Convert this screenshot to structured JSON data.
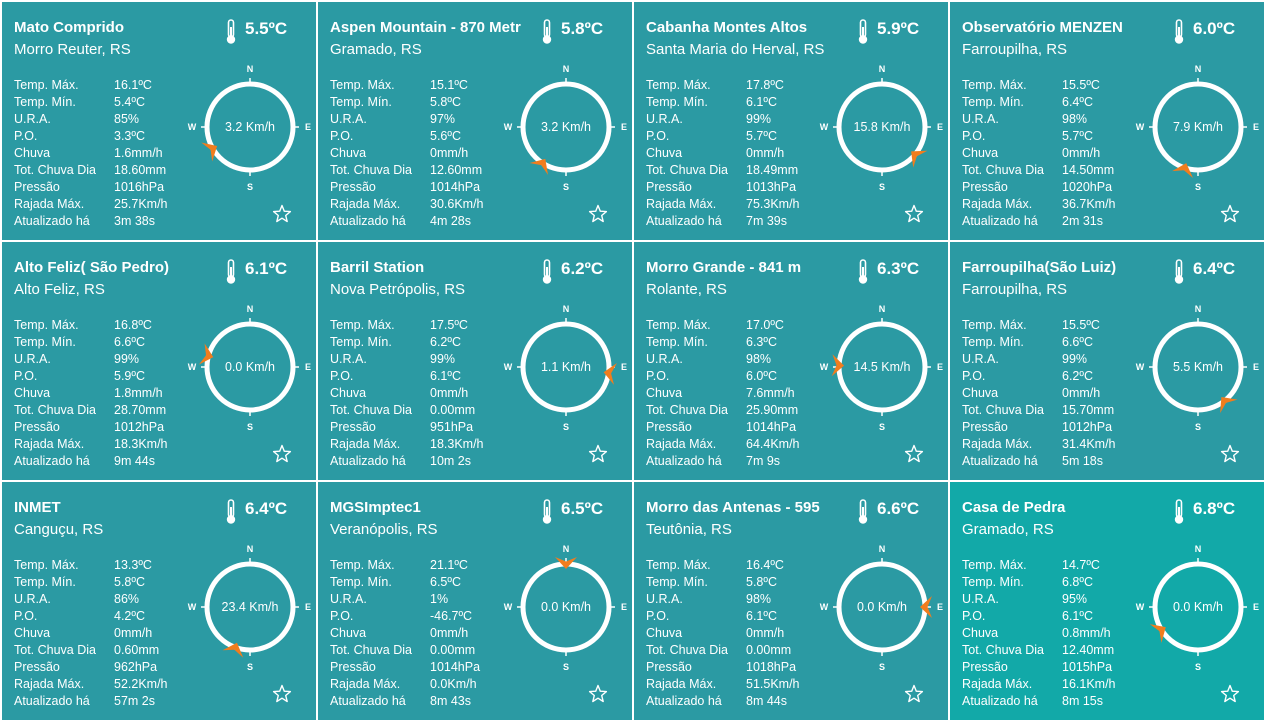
{
  "labels": {
    "temp_max": "Temp. Máx.",
    "temp_min": "Temp. Mín.",
    "ura": "U.R.A.",
    "po": "P.O.",
    "chuva": "Chuva",
    "tot_chuva": "Tot. Chuva Dia",
    "pressao": "Pressão",
    "rajada": "Rajada Máx.",
    "atualizado": "Atualizado há",
    "north": "N",
    "south": "S",
    "east": "E",
    "west": "W"
  },
  "colors": {
    "card": "#2b9aa3",
    "card_highlight": "#12a9a8",
    "text": "#ffffff",
    "wind_arrow": "#f07d1e"
  },
  "icons": {
    "temperature": "thermometer-icon",
    "favorite": "star-icon",
    "wind": "compass-icon"
  },
  "stations": [
    {
      "name": "Mato Comprido",
      "location": "Morro Reuter, RS",
      "temp": "5.5ºC",
      "temp_max": "16.1ºC",
      "temp_min": "5.4ºC",
      "ura": "85%",
      "po": "3.3ºC",
      "chuva": "1.6mm/h",
      "tot_chuva": "18.60mm",
      "pressao": "1016hPa",
      "rajada": "25.7Km/h",
      "atualizado": "3m 38s",
      "wind_speed": "3.2 Km/h",
      "wind_dir_deg": 240
    },
    {
      "name": "Aspen Mountain - 870 Metr",
      "location": "Gramado, RS",
      "temp": "5.8ºC",
      "temp_max": "15.1ºC",
      "temp_min": "5.8ºC",
      "ura": "97%",
      "po": "5.6ºC",
      "chuva": "0mm/h",
      "tot_chuva": "12.60mm",
      "pressao": "1014hPa",
      "rajada": "30.6Km/h",
      "atualizado": "4m 28s",
      "wind_speed": "3.2 Km/h",
      "wind_dir_deg": 213
    },
    {
      "name": "Cabanha Montes Altos",
      "location": "Santa Maria do Herval, RS",
      "temp": "5.9ºC",
      "temp_max": "17.8ºC",
      "temp_min": "6.1ºC",
      "ura": "99%",
      "po": "5.7ºC",
      "chuva": "0mm/h",
      "tot_chuva": "18.49mm",
      "pressao": "1013hPa",
      "rajada": "75.3Km/h",
      "atualizado": "7m 39s",
      "wind_speed": "15.8 Km/h",
      "wind_dir_deg": 130
    },
    {
      "name": "Observatório MENZEN",
      "location": "Farroupilha, RS",
      "temp": "6.0ºC",
      "temp_max": "15.5ºC",
      "temp_min": "6.4ºC",
      "ura": "98%",
      "po": "5.7ºC",
      "chuva": "0mm/h",
      "tot_chuva": "14.50mm",
      "pressao": "1020hPa",
      "rajada": "36.7Km/h",
      "atualizado": "2m 31s",
      "wind_speed": "7.9 Km/h",
      "wind_dir_deg": 198
    },
    {
      "name": "Alto Feliz( São Pedro)",
      "location": "Alto Feliz, RS",
      "temp": "6.1ºC",
      "temp_max": "16.8ºC",
      "temp_min": "6.6ºC",
      "ura": "99%",
      "po": "5.9ºC",
      "chuva": "1.8mm/h",
      "tot_chuva": "28.70mm",
      "pressao": "1012hPa",
      "rajada": "18.3Km/h",
      "atualizado": "9m 44s",
      "wind_speed": "0.0 Km/h",
      "wind_dir_deg": 285
    },
    {
      "name": "Barril Station",
      "location": "Nova Petrópolis, RS",
      "temp": "6.2ºC",
      "temp_max": "17.5ºC",
      "temp_min": "6.2ºC",
      "ura": "99%",
      "po": "6.1ºC",
      "chuva": "0mm/h",
      "tot_chuva": "0.00mm",
      "pressao": "951hPa",
      "rajada": "18.3Km/h",
      "atualizado": "10m 2s",
      "wind_speed": "1.1 Km/h",
      "wind_dir_deg": 98
    },
    {
      "name": "Morro Grande - 841 m",
      "location": "Rolante, RS",
      "temp": "6.3ºC",
      "temp_max": "17.0ºC",
      "temp_min": "6.3ºC",
      "ura": "98%",
      "po": "6.0ºC",
      "chuva": "7.6mm/h",
      "tot_chuva": "25.90mm",
      "pressao": "1014hPa",
      "rajada": "64.4Km/h",
      "atualizado": "7m 9s",
      "wind_speed": "14.5 Km/h",
      "wind_dir_deg": 272
    },
    {
      "name": "Farroupilha(São Luiz)",
      "location": "Farroupilha, RS",
      "temp": "6.4ºC",
      "temp_max": "15.5ºC",
      "temp_min": "6.6ºC",
      "ura": "99%",
      "po": "6.2ºC",
      "chuva": "0mm/h",
      "tot_chuva": "15.70mm",
      "pressao": "1012hPa",
      "rajada": "31.4Km/h",
      "atualizado": "5m 18s",
      "wind_speed": "5.5 Km/h",
      "wind_dir_deg": 142
    },
    {
      "name": "INMET",
      "location": "Canguçu, RS",
      "temp": "6.4ºC",
      "temp_max": "13.3ºC",
      "temp_min": "5.8ºC",
      "ura": "86%",
      "po": "4.2ºC",
      "chuva": "0mm/h",
      "tot_chuva": "0.60mm",
      "pressao": "962hPa",
      "rajada": "52.2Km/h",
      "atualizado": "57m 2s",
      "wind_speed": "23.4 Km/h",
      "wind_dir_deg": 200
    },
    {
      "name": "MGSImptec1",
      "location": "Veranópolis, RS",
      "temp": "6.5ºC",
      "temp_max": "21.1ºC",
      "temp_min": "6.5ºC",
      "ura": "1%",
      "po": "-46.7ºC",
      "chuva": "0mm/h",
      "tot_chuva": "0.00mm",
      "pressao": "1014hPa",
      "rajada": "0.0Km/h",
      "atualizado": "8m 43s",
      "wind_speed": "0.0 Km/h",
      "wind_dir_deg": 0
    },
    {
      "name": "Morro das Antenas - 595",
      "location": "Teutônia, RS",
      "temp": "6.6ºC",
      "temp_max": "16.4ºC",
      "temp_min": "5.8ºC",
      "ura": "98%",
      "po": "6.1ºC",
      "chuva": "0mm/h",
      "tot_chuva": "0.00mm",
      "pressao": "1018hPa",
      "rajada": "51.5Km/h",
      "atualizado": "8m 44s",
      "wind_speed": "0.0 Km/h",
      "wind_dir_deg": 90
    },
    {
      "name": "Casa de Pedra",
      "location": "Gramado, RS",
      "temp": "6.8ºC",
      "temp_max": "14.7ºC",
      "temp_min": "6.8ºC",
      "ura": "95%",
      "po": "6.1ºC",
      "chuva": "0.8mm/h",
      "tot_chuva": "12.40mm",
      "pressao": "1015hPa",
      "rajada": "16.1Km/h",
      "atualizado": "8m 15s",
      "wind_speed": "0.0 Km/h",
      "wind_dir_deg": 238
    }
  ]
}
